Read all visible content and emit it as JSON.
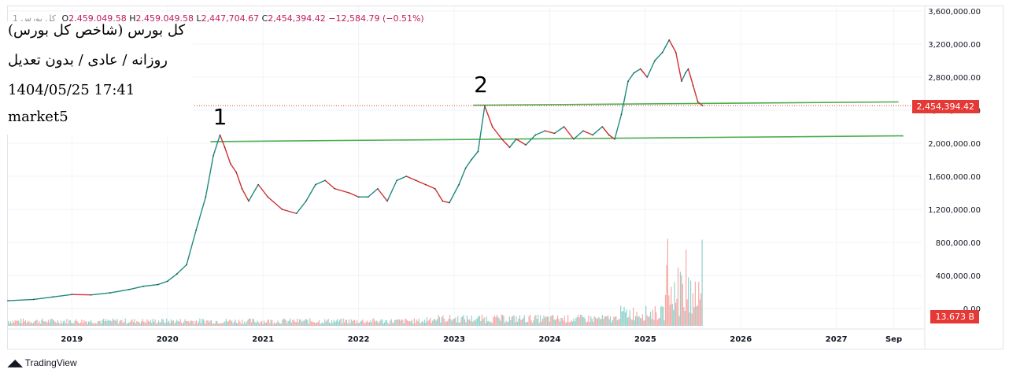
{
  "header": {
    "symbol": "کل بورس 1",
    "open_label": "O",
    "open": "2,459,049.58",
    "high_label": "H",
    "high": "2,459,049.58",
    "low_label": "L",
    "low": "2,447,704.67",
    "close_label": "C",
    "close": "2,454,394.42",
    "change": "−12,584.79 (−0.51%)"
  },
  "info": {
    "title": "کل بورس (شاخص کل بورس)",
    "subtitle": "روزانه / عادی / بدون تعدیل",
    "datetime": "1404/05/25 17:41",
    "watermark": "market5"
  },
  "last_price_label": "2,454,394.42",
  "volume_label": "13.673 B",
  "brand": "TradingView",
  "colors": {
    "up": "#26a69a",
    "down": "#ef5350",
    "trendline": "#4caf50",
    "last_price": "#e53935"
  },
  "chart_data": {
    "type": "line",
    "x_ticks": [
      "2019",
      "2020",
      "2021",
      "2022",
      "2023",
      "2024",
      "2025",
      "2026",
      "2027",
      "Sep"
    ],
    "y_ticks": [
      "3,600,000.00",
      "3,200,000.00",
      "2,800,000.00",
      "2,400,000.00",
      "2,000,000.00",
      "1,600,000.00",
      "1,200,000.00",
      "800,000.00",
      "400,000.00",
      "0.00"
    ],
    "ylim": [
      0,
      3600000
    ],
    "xlim": [
      2018.33,
      2027.9
    ],
    "last_price": 2454394.42,
    "series": [
      {
        "x": [
          2018.33,
          2018.6,
          2018.8,
          2019.0,
          2019.2,
          2019.4,
          2019.6,
          2019.75,
          2019.9,
          2020.0,
          2020.1,
          2020.2,
          2020.3,
          2020.4,
          2020.48,
          2020.55,
          2020.6,
          2020.66,
          2020.72,
          2020.78,
          2020.85,
          2020.95,
          2021.05,
          2021.2,
          2021.35,
          2021.45,
          2021.55,
          2021.65,
          2021.75,
          2021.9,
          2022.0,
          2022.1,
          2022.2,
          2022.3,
          2022.4,
          2022.5,
          2022.6,
          2022.7,
          2022.8,
          2022.88,
          2022.95,
          2023.05,
          2023.12,
          2023.18,
          2023.25,
          2023.32,
          2023.4,
          2023.5,
          2023.58,
          2023.65,
          2023.75,
          2023.85,
          2023.95,
          2024.05,
          2024.15,
          2024.25,
          2024.35,
          2024.45,
          2024.55,
          2024.62,
          2024.68,
          2024.75,
          2024.82,
          2024.88,
          2024.95,
          2025.02,
          2025.1,
          2025.18,
          2025.25,
          2025.32,
          2025.38,
          2025.42,
          2025.45,
          2025.5,
          2025.55,
          2025.6
        ],
        "y": [
          95000,
          110000,
          140000,
          170000,
          165000,
          190000,
          230000,
          270000,
          290000,
          330000,
          420000,
          530000,
          950000,
          1350000,
          1850000,
          2100000,
          1950000,
          1750000,
          1650000,
          1450000,
          1300000,
          1500000,
          1350000,
          1200000,
          1150000,
          1300000,
          1500000,
          1550000,
          1450000,
          1400000,
          1350000,
          1350000,
          1450000,
          1300000,
          1550000,
          1600000,
          1550000,
          1500000,
          1450000,
          1300000,
          1280000,
          1500000,
          1700000,
          1800000,
          1900000,
          2450000,
          2200000,
          2050000,
          1950000,
          2050000,
          1980000,
          2100000,
          2150000,
          2120000,
          2200000,
          2050000,
          2150000,
          2100000,
          2200000,
          2100000,
          2050000,
          2350000,
          2750000,
          2850000,
          2900000,
          2800000,
          3000000,
          3100000,
          3250000,
          3100000,
          2750000,
          2850000,
          2900000,
          2700000,
          2500000,
          2454394
        ]
      }
    ],
    "trendlines": [
      {
        "label": "1",
        "x": [
          2020.45,
          2027.7
        ],
        "y": [
          2020000,
          2090000
        ]
      },
      {
        "label": "2",
        "x": [
          2023.2,
          2027.65
        ],
        "y": [
          2460000,
          2500000
        ]
      }
    ],
    "annotations": [
      {
        "text": "1",
        "x": 2020.55
      },
      {
        "text": "2",
        "x": 2023.28
      }
    ]
  }
}
